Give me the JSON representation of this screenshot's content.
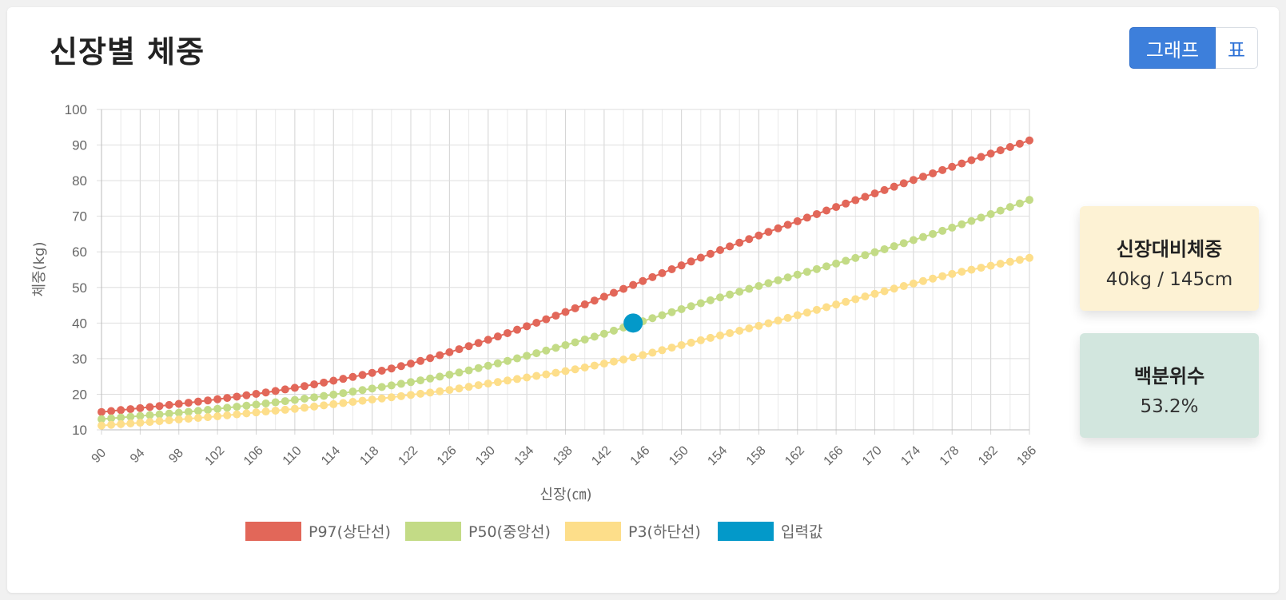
{
  "page": {
    "title": "신장별 체중"
  },
  "view_toggle": {
    "graph_label": "그래프",
    "table_label": "표",
    "active": "graph"
  },
  "stats": {
    "ratio": {
      "title": "신장대비체중",
      "value": "40kg / 145cm"
    },
    "percentile": {
      "title": "백분위수",
      "value": "53.2%"
    }
  },
  "colors": {
    "p97": "#e26759",
    "p50": "#c3db86",
    "p3": "#fdde8a",
    "input": "#0399c9"
  },
  "chart_data": {
    "type": "line",
    "xlabel": "신장(㎝)",
    "ylabel": "체중(kg)",
    "xlim": [
      90,
      186
    ],
    "ylim": [
      10,
      100
    ],
    "x_ticks": [
      90,
      94,
      98,
      102,
      106,
      110,
      114,
      118,
      122,
      126,
      130,
      134,
      138,
      142,
      146,
      150,
      154,
      158,
      162,
      166,
      170,
      174,
      178,
      182,
      186
    ],
    "y_ticks": [
      10,
      20,
      30,
      40,
      50,
      60,
      70,
      80,
      90,
      100
    ],
    "grid": true,
    "legend_position": "bottom",
    "series": [
      {
        "name": "P97(상단선)",
        "key": "p97",
        "x": [
          90,
          94,
          98,
          102,
          106,
          110,
          114,
          118,
          122,
          126,
          130,
          134,
          138,
          142,
          146,
          150,
          154,
          158,
          162,
          166,
          170,
          174,
          178,
          182,
          186
        ],
        "y": [
          15,
          16.1,
          17.3,
          18.6,
          20.1,
          21.8,
          23.8,
          26,
          28.6,
          31.8,
          35.3,
          39.1,
          43.1,
          47.4,
          51.8,
          56.2,
          60.5,
          64.6,
          68.6,
          72.6,
          76.4,
          80.2,
          83.9,
          87.6,
          91.3
        ]
      },
      {
        "name": "P50(중앙선)",
        "key": "p50",
        "x": [
          90,
          94,
          98,
          102,
          106,
          110,
          114,
          118,
          122,
          126,
          130,
          134,
          138,
          142,
          146,
          150,
          154,
          158,
          162,
          166,
          170,
          174,
          178,
          182,
          186
        ],
        "y": [
          13,
          13.9,
          14.8,
          15.9,
          17.1,
          18.4,
          19.9,
          21.6,
          23.4,
          25.5,
          28,
          30.8,
          33.8,
          37,
          40.5,
          43.9,
          47.2,
          50.4,
          53.6,
          56.7,
          59.9,
          63.3,
          66.8,
          70.6,
          74.6
        ]
      },
      {
        "name": "P3(하단선)",
        "key": "p3",
        "x": [
          90,
          94,
          98,
          102,
          106,
          110,
          114,
          118,
          122,
          126,
          130,
          134,
          138,
          142,
          146,
          150,
          154,
          158,
          162,
          166,
          170,
          174,
          178,
          182,
          186
        ],
        "y": [
          11.2,
          12,
          12.9,
          13.8,
          14.9,
          15.9,
          17.2,
          18.5,
          19.8,
          21.2,
          23,
          24.7,
          26.5,
          28.6,
          31,
          33.8,
          36.5,
          39.2,
          42.2,
          45.2,
          48.2,
          51.1,
          53.8,
          56.1,
          58.3
        ]
      },
      {
        "name": "입력값",
        "key": "input",
        "x": [
          145
        ],
        "y": [
          40
        ]
      }
    ]
  }
}
